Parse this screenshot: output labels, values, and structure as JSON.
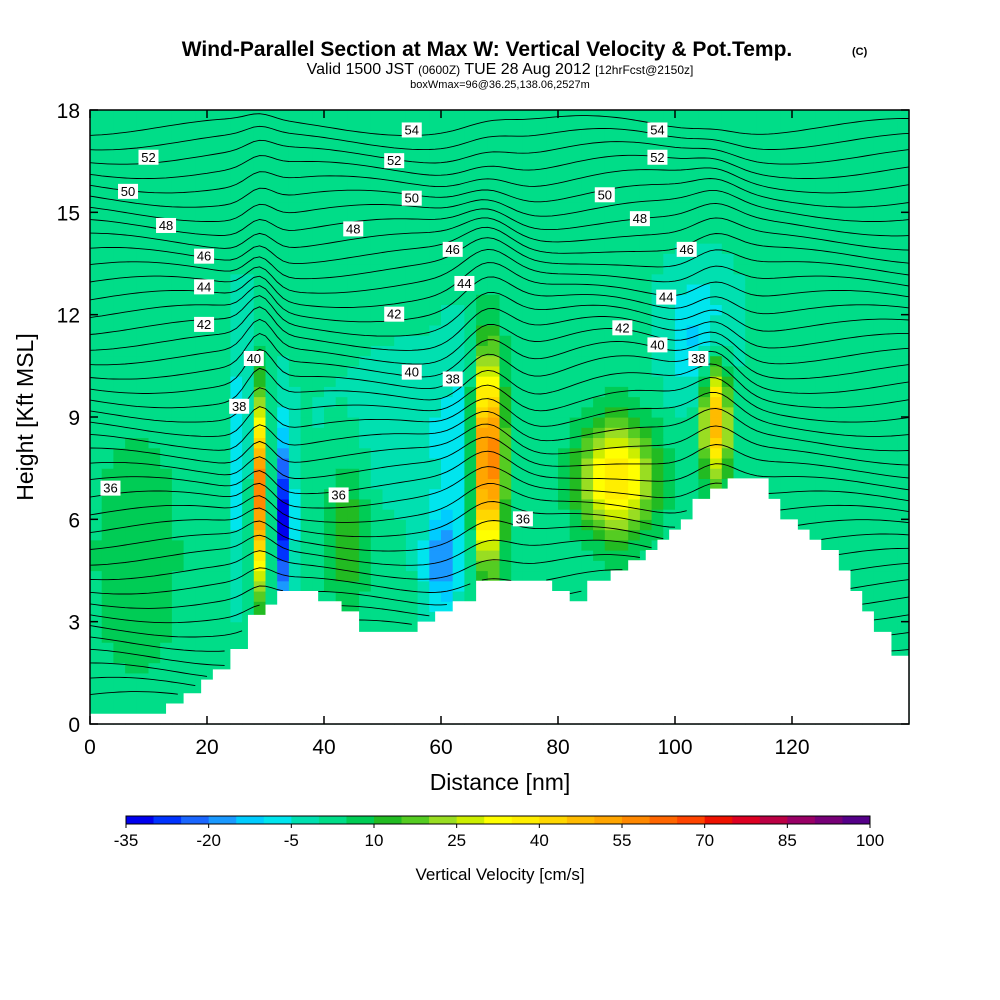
{
  "chart_data": {
    "type": "heatmap",
    "title": "Wind-Parallel Section at Max W: Vertical Velocity & Pot.Temp.",
    "title_mark": "(C)",
    "subtitle": {
      "valid_prefix": "Valid 1500 JST",
      "utc": "(0600Z)",
      "date": "TUE 28 Aug 2012",
      "forecast": "[12hrFcst@2150z]"
    },
    "subtitle2": "boxWmax=96@36.25,138.06,2527m",
    "xlabel": "Distance [nm]",
    "ylabel": "Height [Kft MSL]",
    "xlim": [
      0,
      140
    ],
    "ylim": [
      0,
      18
    ],
    "xticks": [
      0,
      20,
      40,
      60,
      80,
      100,
      120
    ],
    "yticks": [
      0,
      3,
      6,
      9,
      12,
      15,
      18
    ],
    "colorbar": {
      "title": "Vertical Velocity [cm/s]",
      "levels": [
        -35,
        -30,
        -25,
        -20,
        -15,
        -10,
        -5,
        0,
        5,
        10,
        15,
        20,
        25,
        30,
        35,
        40,
        45,
        50,
        55,
        60,
        65,
        70,
        75,
        80,
        85,
        90,
        95,
        100
      ],
      "tick_labels": [
        "-35",
        "-20",
        "-5",
        "10",
        "25",
        "40",
        "55",
        "70",
        "85",
        "100"
      ],
      "colors": [
        "#0000ee",
        "#0033ff",
        "#1a66ff",
        "#1a99ff",
        "#00ccff",
        "#00e5ee",
        "#00e0b0",
        "#00dd88",
        "#00cc55",
        "#22bb22",
        "#55cc22",
        "#99dd22",
        "#ccee00",
        "#ffff00",
        "#ffee00",
        "#ffd700",
        "#ffbb00",
        "#ffa500",
        "#ff8800",
        "#ff6600",
        "#ff4400",
        "#ee1100",
        "#dd0022",
        "#bb0044",
        "#990066",
        "#770077",
        "#550088"
      ]
    },
    "terrain_profile": [
      [
        0,
        0.3
      ],
      [
        2,
        0.3
      ],
      [
        4,
        0.3
      ],
      [
        6,
        0.3
      ],
      [
        8,
        0.3
      ],
      [
        10,
        0.3
      ],
      [
        12,
        0.3
      ],
      [
        13,
        0.6
      ],
      [
        15,
        0.6
      ],
      [
        16,
        0.9
      ],
      [
        18,
        0.9
      ],
      [
        19,
        1.3
      ],
      [
        20,
        1.3
      ],
      [
        21,
        1.6
      ],
      [
        23,
        1.6
      ],
      [
        24,
        2.2
      ],
      [
        26,
        2.2
      ],
      [
        27,
        3.2
      ],
      [
        29,
        3.2
      ],
      [
        30,
        3.5
      ],
      [
        31,
        3.5
      ],
      [
        32,
        3.9
      ],
      [
        38,
        3.9
      ],
      [
        39,
        3.6
      ],
      [
        42,
        3.6
      ],
      [
        43,
        3.3
      ],
      [
        45,
        3.3
      ],
      [
        46,
        2.7
      ],
      [
        55,
        2.7
      ],
      [
        56,
        3.0
      ],
      [
        58,
        3.0
      ],
      [
        59,
        3.3
      ],
      [
        61,
        3.3
      ],
      [
        62,
        3.6
      ],
      [
        65,
        3.6
      ],
      [
        66,
        4.2
      ],
      [
        78,
        4.2
      ],
      [
        79,
        3.9
      ],
      [
        81,
        3.9
      ],
      [
        82,
        3.6
      ],
      [
        84,
        3.6
      ],
      [
        85,
        4.2
      ],
      [
        88,
        4.2
      ],
      [
        89,
        4.5
      ],
      [
        91,
        4.5
      ],
      [
        92,
        4.8
      ],
      [
        94,
        4.8
      ],
      [
        95,
        5.1
      ],
      [
        96,
        5.1
      ],
      [
        97,
        5.4
      ],
      [
        98,
        5.4
      ],
      [
        99,
        5.7
      ],
      [
        100,
        5.7
      ],
      [
        101,
        6.0
      ],
      [
        102,
        6.0
      ],
      [
        103,
        6.6
      ],
      [
        105,
        6.6
      ],
      [
        106,
        6.9
      ],
      [
        108,
        6.9
      ],
      [
        109,
        7.2
      ],
      [
        115,
        7.2
      ],
      [
        116,
        6.6
      ],
      [
        117,
        6.6
      ],
      [
        118,
        6.0
      ],
      [
        120,
        6.0
      ],
      [
        121,
        5.7
      ],
      [
        122,
        5.7
      ],
      [
        123,
        5.4
      ],
      [
        124,
        5.4
      ],
      [
        125,
        5.1
      ],
      [
        127,
        5.1
      ],
      [
        128,
        4.5
      ],
      [
        129,
        4.5
      ],
      [
        130,
        3.9
      ],
      [
        131,
        3.9
      ],
      [
        132,
        3.3
      ],
      [
        133,
        3.3
      ],
      [
        134,
        2.7
      ],
      [
        136,
        2.7
      ],
      [
        137,
        2.0
      ],
      [
        140,
        2.0
      ]
    ],
    "w_features": [
      {
        "kind": "updraft",
        "x": 68,
        "y": 7.8,
        "sx": 1.8,
        "sy": 2.1,
        "w": 70
      },
      {
        "kind": "updraft",
        "x": 29,
        "y": 6.8,
        "sx": 1.0,
        "sy": 1.9,
        "w": 58
      },
      {
        "kind": "updraft",
        "x": 90,
        "y": 7.2,
        "sx": 4.5,
        "sy": 1.2,
        "w": 40
      },
      {
        "kind": "updraft",
        "x": 107,
        "y": 8.9,
        "sx": 1.6,
        "sy": 1.2,
        "w": 50
      },
      {
        "kind": "updraft",
        "x": 44,
        "y": 5.5,
        "sx": 2.5,
        "sy": 1.8,
        "w": 13
      },
      {
        "kind": "updraft",
        "x": 8,
        "y": 5.0,
        "sx": 6.0,
        "sy": 3.0,
        "w": 8
      },
      {
        "kind": "downdraft",
        "x": 33,
        "y": 6.0,
        "sx": 1.1,
        "sy": 1.8,
        "w": -33
      },
      {
        "kind": "downdraft",
        "x": 60,
        "y": 4.8,
        "sx": 2.0,
        "sy": 1.0,
        "w": -20
      },
      {
        "kind": "downdraft",
        "x": 26,
        "y": 8.0,
        "sx": 1.3,
        "sy": 2.5,
        "w": -12
      },
      {
        "kind": "downdraft",
        "x": 64,
        "y": 7.5,
        "sx": 3.0,
        "sy": 2.5,
        "w": -7
      },
      {
        "kind": "downdraft",
        "x": 104,
        "y": 11.3,
        "sx": 4.0,
        "sy": 1.3,
        "w": -12
      },
      {
        "kind": "downdraft",
        "x": 55,
        "y": 8.6,
        "sx": 10,
        "sy": 1.5,
        "w": -5
      }
    ],
    "isentropes": [
      {
        "label": "36",
        "y0": 6.6
      },
      {
        "label": "38",
        "y0": 9.0
      },
      {
        "label": "40",
        "y0": 10.2
      },
      {
        "label": "42",
        "y0": 11.8
      },
      {
        "label": "44",
        "y0": 12.6
      },
      {
        "label": "46",
        "y0": 13.6
      },
      {
        "label": "48",
        "y0": 14.6
      },
      {
        "label": "50",
        "y0": 15.5
      },
      {
        "label": "52",
        "y0": 16.4
      },
      {
        "label": "54",
        "y0": 17.3
      }
    ],
    "contour_labels": [
      {
        "text": "54",
        "x": 55,
        "y": 17.4
      },
      {
        "text": "54",
        "x": 97,
        "y": 17.4
      },
      {
        "text": "52",
        "x": 10,
        "y": 16.6
      },
      {
        "text": "52",
        "x": 52,
        "y": 16.5
      },
      {
        "text": "52",
        "x": 97,
        "y": 16.6
      },
      {
        "text": "50",
        "x": 6.5,
        "y": 15.6
      },
      {
        "text": "50",
        "x": 55,
        "y": 15.4
      },
      {
        "text": "50",
        "x": 88,
        "y": 15.5
      },
      {
        "text": "48",
        "x": 13,
        "y": 14.6
      },
      {
        "text": "48",
        "x": 45,
        "y": 14.5
      },
      {
        "text": "48",
        "x": 94,
        "y": 14.8
      },
      {
        "text": "46",
        "x": 19.5,
        "y": 13.7
      },
      {
        "text": "46",
        "x": 62,
        "y": 13.9
      },
      {
        "text": "46",
        "x": 102,
        "y": 13.9
      },
      {
        "text": "44",
        "x": 19.5,
        "y": 12.8
      },
      {
        "text": "44",
        "x": 64,
        "y": 12.9
      },
      {
        "text": "44",
        "x": 98.5,
        "y": 12.5
      },
      {
        "text": "42",
        "x": 19.5,
        "y": 11.7
      },
      {
        "text": "42",
        "x": 52,
        "y": 12.0
      },
      {
        "text": "42",
        "x": 91,
        "y": 11.6
      },
      {
        "text": "40",
        "x": 28,
        "y": 10.7
      },
      {
        "text": "40",
        "x": 55,
        "y": 10.3
      },
      {
        "text": "40",
        "x": 97,
        "y": 11.1
      },
      {
        "text": "38",
        "x": 25.5,
        "y": 9.3
      },
      {
        "text": "38",
        "x": 62,
        "y": 10.1
      },
      {
        "text": "38",
        "x": 104,
        "y": 10.7
      },
      {
        "text": "36",
        "x": 3.5,
        "y": 6.9
      },
      {
        "text": "36",
        "x": 42.5,
        "y": 6.7
      },
      {
        "text": "36",
        "x": 74,
        "y": 6.0
      }
    ]
  }
}
